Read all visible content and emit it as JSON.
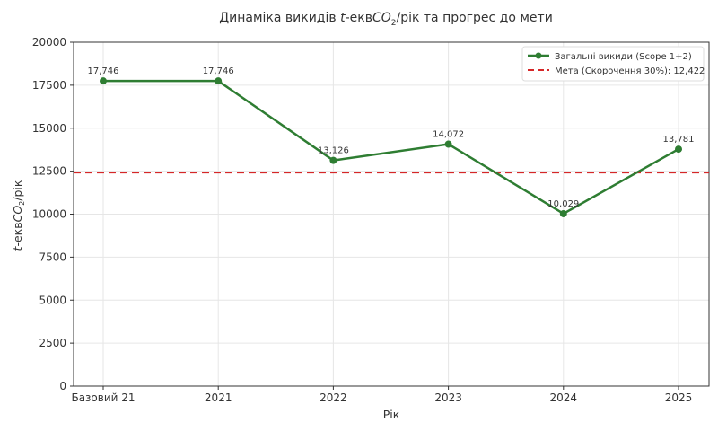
{
  "chart_data": {
    "type": "line",
    "title": "Динаміка викидів t-еквCO₂/рік та прогрес до мети",
    "title_parts": {
      "pre": "Динаміка викидів ",
      "t": "t",
      "mid": "-екв",
      "co": "CO",
      "sub": "2",
      "post": "/рік та прогрес до мети"
    },
    "xlabel": "Рік",
    "ylabel": "t-еквCO₂/рік",
    "ylabel_parts": {
      "t": "t",
      "mid": "-екв",
      "co": "CO",
      "sub": "2",
      "post": "/рік"
    },
    "categories": [
      "Базовий 21",
      "2021",
      "2022",
      "2023",
      "2024",
      "2025"
    ],
    "series": [
      {
        "name": "Загальні викиди (Scope 1+2)",
        "values": [
          17746,
          17746,
          13126,
          14072,
          10029,
          13781
        ],
        "labels": [
          "17,746",
          "17,746",
          "13,126",
          "14,072",
          "10,029",
          "13,781"
        ],
        "color": "#2e7d32",
        "style": "solid",
        "marker": "circle"
      }
    ],
    "reference_lines": [
      {
        "name": "Мета (Скорочення 30%): 12,422",
        "value": 12422,
        "color": "#d62728",
        "style": "dashed"
      }
    ],
    "ylim": [
      0,
      20000
    ],
    "yticks": [
      0,
      2500,
      5000,
      7500,
      10000,
      12500,
      15000,
      17500,
      20000
    ],
    "grid": true,
    "legend_position": "upper right"
  }
}
